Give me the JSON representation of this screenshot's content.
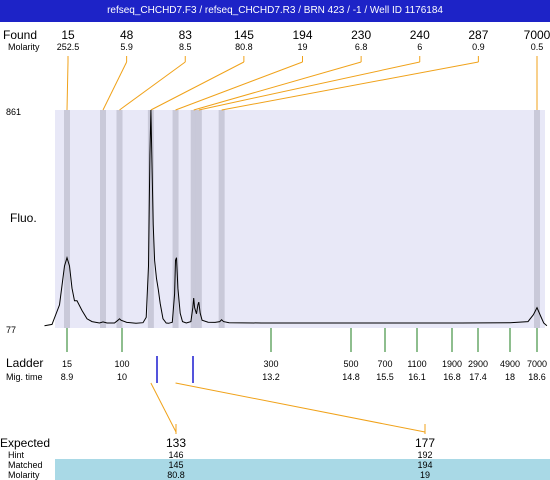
{
  "title": "refseq_CHCHD7.F3 / refseq_CHCHD7.R3 / BRN 423 / -1 / Well ID 1176184",
  "chart_data": {
    "type": "line",
    "ylabel": "Fluo.",
    "y_ticks": [
      77,
      861
    ],
    "ylim": [
      77,
      861
    ],
    "found_label": "Found",
    "molarity_label": "Molarity",
    "found_peaks": [
      {
        "size": "15",
        "molarity": "252.5",
        "mig_time": 8.9
      },
      {
        "size": "48",
        "molarity": "5.9",
        "mig_time": 9.62
      },
      {
        "size": "83",
        "molarity": "8.5",
        "mig_time": 9.95
      },
      {
        "size": "145",
        "molarity": "80.8",
        "mig_time": 10.62
      },
      {
        "size": "194",
        "molarity": "19",
        "mig_time": 11.15
      },
      {
        "size": "230",
        "molarity": "6.8",
        "mig_time": 11.54
      },
      {
        "size": "240",
        "molarity": "6",
        "mig_time": 11.65
      },
      {
        "size": "287",
        "molarity": "0.9",
        "mig_time": 12.14
      },
      {
        "size": "7000",
        "molarity": "0.5",
        "mig_time": 18.6
      }
    ],
    "ladder_label": "Ladder",
    "migtime_label": "Mig. time",
    "ladder": [
      {
        "size": "15",
        "time": "8.9"
      },
      {
        "size": "100",
        "time": "10"
      },
      {
        "size": "300",
        "time": "13.2"
      },
      {
        "size": "500",
        "time": "14.8"
      },
      {
        "size": "700",
        "time": "15.5"
      },
      {
        "size": "1100",
        "time": "16.1"
      },
      {
        "size": "1900",
        "time": "16.8"
      },
      {
        "size": "2900",
        "time": "17.4"
      },
      {
        "size": "4900",
        "time": "18"
      },
      {
        "size": "7000",
        "time": "18.6"
      }
    ],
    "trace": [
      [
        8.45,
        85
      ],
      [
        8.6,
        90
      ],
      [
        8.75,
        160
      ],
      [
        8.85,
        300
      ],
      [
        8.9,
        330
      ],
      [
        8.95,
        300
      ],
      [
        9.0,
        220
      ],
      [
        9.05,
        175
      ],
      [
        9.1,
        175
      ],
      [
        9.2,
        140
      ],
      [
        9.3,
        110
      ],
      [
        9.4,
        100
      ],
      [
        9.55,
        95
      ],
      [
        9.62,
        99
      ],
      [
        9.7,
        95
      ],
      [
        9.85,
        95
      ],
      [
        9.92,
        105
      ],
      [
        9.95,
        110
      ],
      [
        9.98,
        105
      ],
      [
        10.1,
        97
      ],
      [
        10.3,
        94
      ],
      [
        10.45,
        96
      ],
      [
        10.52,
        115
      ],
      [
        10.57,
        300
      ],
      [
        10.6,
        700
      ],
      [
        10.62,
        861
      ],
      [
        10.64,
        700
      ],
      [
        10.67,
        450
      ],
      [
        10.7,
        320
      ],
      [
        10.74,
        255
      ],
      [
        10.78,
        215
      ],
      [
        10.82,
        165
      ],
      [
        10.88,
        110
      ],
      [
        10.95,
        95
      ],
      [
        11.0,
        94
      ],
      [
        11.08,
        98
      ],
      [
        11.13,
        200
      ],
      [
        11.15,
        320
      ],
      [
        11.17,
        330
      ],
      [
        11.2,
        220
      ],
      [
        11.25,
        130
      ],
      [
        11.3,
        100
      ],
      [
        11.38,
        95
      ],
      [
        11.48,
        100
      ],
      [
        11.52,
        150
      ],
      [
        11.54,
        185
      ],
      [
        11.56,
        150
      ],
      [
        11.6,
        128
      ],
      [
        11.63,
        160
      ],
      [
        11.65,
        170
      ],
      [
        11.68,
        130
      ],
      [
        11.72,
        105
      ],
      [
        11.85,
        98
      ],
      [
        12.0,
        97
      ],
      [
        12.1,
        100
      ],
      [
        12.14,
        107
      ],
      [
        12.18,
        100
      ],
      [
        12.3,
        96
      ],
      [
        13.0,
        95
      ],
      [
        14.0,
        95
      ],
      [
        15.0,
        95
      ],
      [
        16.0,
        95
      ],
      [
        17.0,
        95
      ],
      [
        18.0,
        96
      ],
      [
        18.4,
        100
      ],
      [
        18.52,
        125
      ],
      [
        18.6,
        150
      ],
      [
        18.68,
        120
      ],
      [
        18.75,
        95
      ],
      [
        18.82,
        85
      ]
    ],
    "expected_table": {
      "row_labels": [
        "Expected",
        "Hint",
        "Matched",
        "Molarity"
      ],
      "columns": [
        {
          "expected": "133",
          "hint": "146",
          "matched": "145",
          "molarity": "80.8"
        },
        {
          "expected": "177",
          "hint": "192",
          "matched": "194",
          "molarity": "19"
        }
      ]
    }
  },
  "colors": {
    "title_bar": "#1d23c7",
    "plot_bg": "#e8e8f7",
    "band": "#c9c9d9",
    "found_line": "#f0a21a",
    "ladder_line": "#1e7d1e",
    "expected_line": "#1a1ad0",
    "matched_row": "#a9d9e6"
  }
}
